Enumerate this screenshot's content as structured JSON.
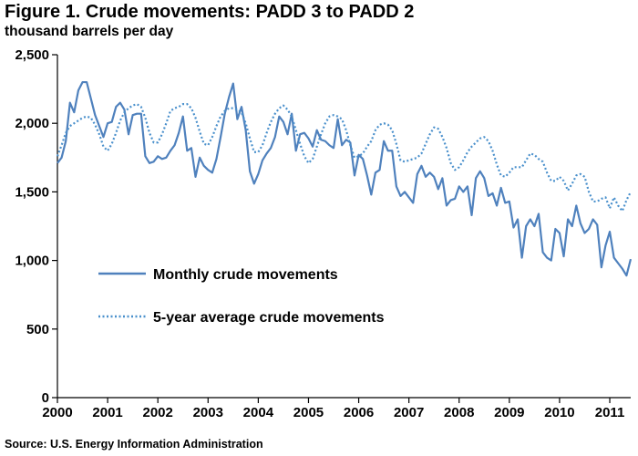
{
  "title": "Figure 1. Crude movements: PADD 3 to PADD 2",
  "subtitle": "thousand barrels per day",
  "source": "Source:  U.S. Energy Information Administration",
  "colors": {
    "monthly": "#4F81BD",
    "average": "#4A90CC",
    "axis": "#000000"
  },
  "chart_data": {
    "type": "line",
    "xlabel": "",
    "ylabel": "",
    "ylim": [
      0,
      2500
    ],
    "xlim": [
      2000,
      2011.417
    ],
    "y_ticks": [
      0,
      500,
      1000,
      1500,
      2000,
      2500
    ],
    "y_tick_labels": [
      "0",
      "500",
      "1,000",
      "1,500",
      "2,000",
      "2,500"
    ],
    "x_ticks": [
      2000,
      2001,
      2002,
      2003,
      2004,
      2005,
      2006,
      2007,
      2008,
      2009,
      2010,
      2011
    ],
    "x_tick_labels": [
      "2000",
      "2001",
      "2002",
      "2003",
      "2004",
      "2005",
      "2006",
      "2007",
      "2008",
      "2009",
      "2010",
      "2011"
    ],
    "grid": false,
    "legend_position": "lower-left",
    "series": [
      {
        "name": "Monthly crude movements",
        "style": "solid",
        "start": "2000-01",
        "values": [
          1710,
          1750,
          1870,
          2150,
          2080,
          2240,
          2300,
          2300,
          2180,
          2060,
          1980,
          1900,
          2000,
          2010,
          2120,
          2150,
          2100,
          1920,
          2060,
          2070,
          2070,
          1760,
          1710,
          1720,
          1760,
          1740,
          1750,
          1800,
          1840,
          1930,
          2050,
          1800,
          1820,
          1610,
          1750,
          1690,
          1660,
          1640,
          1740,
          1900,
          2070,
          2190,
          2290,
          2030,
          2120,
          1950,
          1650,
          1560,
          1630,
          1730,
          1780,
          1820,
          1900,
          2050,
          2010,
          1920,
          2070,
          1800,
          1920,
          1930,
          1890,
          1830,
          1950,
          1880,
          1870,
          1840,
          1820,
          2030,
          1840,
          1880,
          1860,
          1620,
          1770,
          1740,
          1620,
          1480,
          1640,
          1660,
          1870,
          1800,
          1800,
          1540,
          1470,
          1500,
          1460,
          1420,
          1630,
          1690,
          1610,
          1640,
          1610,
          1520,
          1600,
          1400,
          1440,
          1450,
          1540,
          1500,
          1540,
          1330,
          1600,
          1650,
          1600,
          1470,
          1490,
          1400,
          1530,
          1420,
          1430,
          1240,
          1300,
          1020,
          1250,
          1300,
          1250,
          1340,
          1060,
          1020,
          1000,
          1230,
          1200,
          1030,
          1300,
          1250,
          1400,
          1270,
          1200,
          1230,
          1300,
          1260,
          950,
          1110,
          1210,
          1020,
          980,
          940,
          890,
          1010
        ]
      },
      {
        "name": "5-year average crude movements",
        "style": "dotted",
        "start": "2000-01",
        "values": [
          1760,
          1840,
          1930,
          1980,
          2000,
          2020,
          2040,
          2050,
          2040,
          1990,
          1920,
          1830,
          1800,
          1850,
          1930,
          2020,
          2080,
          2110,
          2130,
          2140,
          2120,
          2040,
          1930,
          1860,
          1860,
          1920,
          2000,
          2090,
          2110,
          2120,
          2140,
          2140,
          2110,
          2040,
          1940,
          1850,
          1840,
          1900,
          1980,
          2050,
          2090,
          2110,
          2110,
          2100,
          2080,
          2000,
          1890,
          1790,
          1790,
          1840,
          1930,
          2010,
          2070,
          2110,
          2130,
          2100,
          2050,
          1950,
          1850,
          1760,
          1710,
          1740,
          1830,
          1920,
          2000,
          2050,
          2060,
          2050,
          2030,
          1950,
          1840,
          1750,
          1760,
          1780,
          1830,
          1870,
          1950,
          1990,
          2000,
          1990,
          1950,
          1850,
          1730,
          1720,
          1730,
          1740,
          1750,
          1780,
          1850,
          1920,
          1970,
          1960,
          1900,
          1820,
          1710,
          1660,
          1680,
          1730,
          1790,
          1830,
          1860,
          1890,
          1900,
          1870,
          1800,
          1700,
          1620,
          1610,
          1640,
          1680,
          1680,
          1680,
          1730,
          1780,
          1770,
          1740,
          1720,
          1640,
          1580,
          1580,
          1610,
          1580,
          1510,
          1560,
          1620,
          1630,
          1610,
          1500,
          1430,
          1430,
          1450,
          1460,
          1380,
          1460,
          1400,
          1360,
          1440,
          1500
        ]
      }
    ]
  }
}
